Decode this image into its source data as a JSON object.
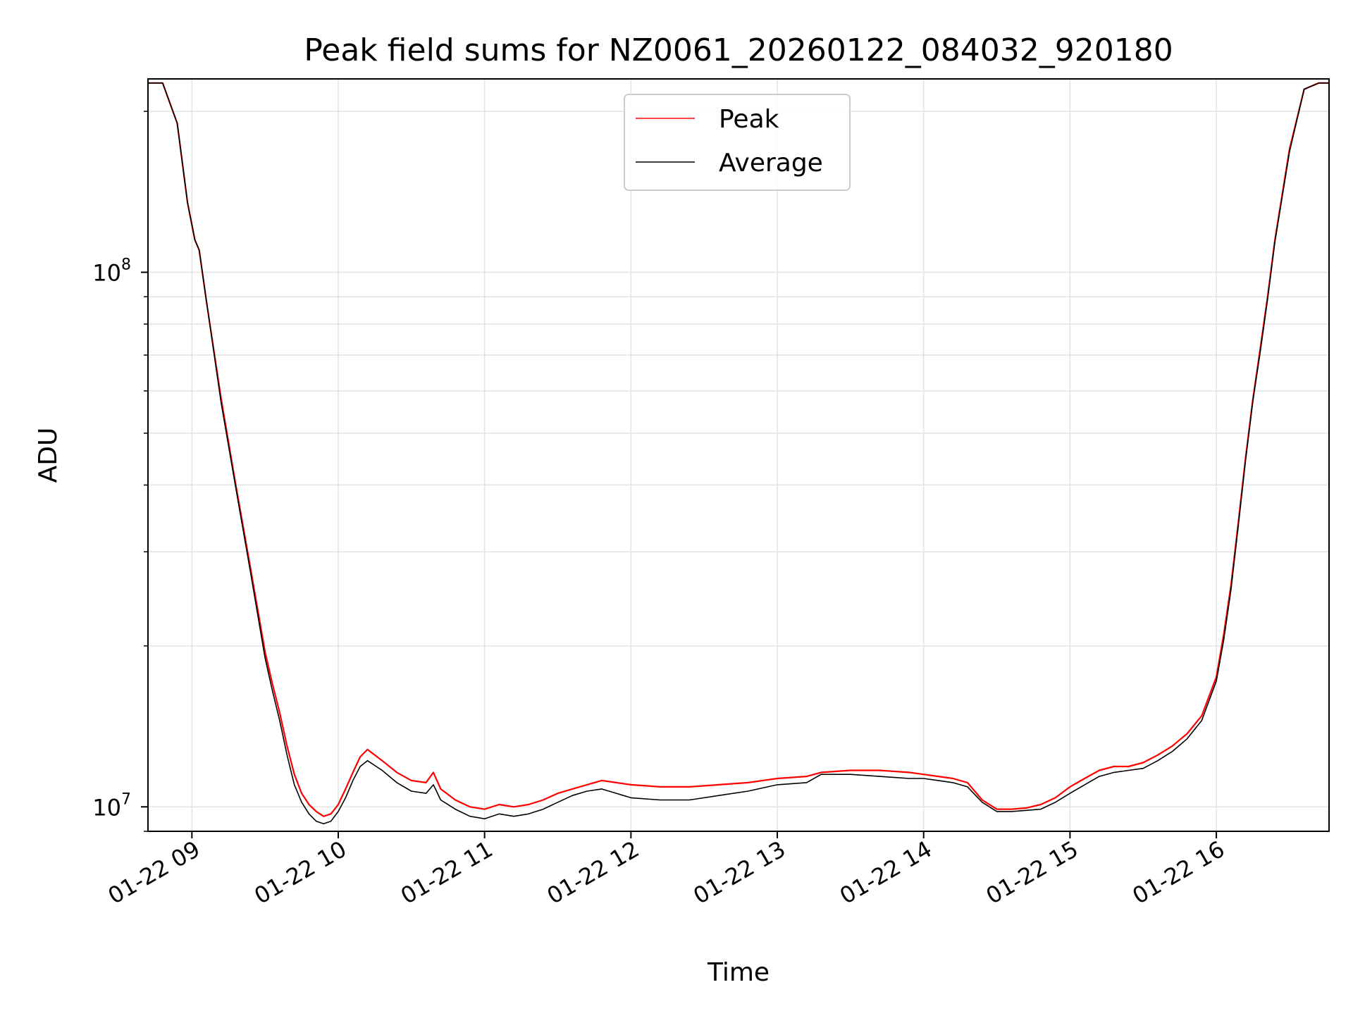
{
  "chart_data": {
    "type": "line",
    "title": "Peak field sums for NZ0061_20260122_084032_920180",
    "xlabel": "Time",
    "ylabel": "ADU",
    "yscale": "log",
    "ylim": [
      9000000,
      230000000
    ],
    "xlim_hours": [
      8.7,
      16.77
    ],
    "grid": true,
    "legend_position": "top-center",
    "x_ticks": [
      {
        "hour": 9,
        "label": "01-22 09"
      },
      {
        "hour": 10,
        "label": "01-22 10"
      },
      {
        "hour": 11,
        "label": "01-22 11"
      },
      {
        "hour": 12,
        "label": "01-22 12"
      },
      {
        "hour": 13,
        "label": "01-22 13"
      },
      {
        "hour": 14,
        "label": "01-22 14"
      },
      {
        "hour": 15,
        "label": "01-22 15"
      },
      {
        "hour": 16,
        "label": "01-22 16"
      }
    ],
    "y_ticks": [
      {
        "value": 10000000,
        "base": "10",
        "exp": "7"
      },
      {
        "value": 100000000,
        "base": "10",
        "exp": "8"
      }
    ],
    "series": [
      {
        "name": "Peak",
        "color": "#ff0000",
        "x": [
          8.7,
          8.8,
          8.9,
          8.97,
          9.02,
          9.05,
          9.1,
          9.2,
          9.3,
          9.4,
          9.5,
          9.55,
          9.6,
          9.65,
          9.7,
          9.75,
          9.8,
          9.85,
          9.9,
          9.95,
          10.0,
          10.05,
          10.1,
          10.15,
          10.2,
          10.3,
          10.4,
          10.5,
          10.6,
          10.65,
          10.7,
          10.8,
          10.9,
          11.0,
          11.1,
          11.2,
          11.3,
          11.4,
          11.5,
          11.6,
          11.7,
          11.8,
          11.9,
          12.0,
          12.2,
          12.4,
          12.6,
          12.8,
          13.0,
          13.2,
          13.3,
          13.5,
          13.7,
          13.9,
          14.0,
          14.1,
          14.2,
          14.3,
          14.4,
          14.5,
          14.6,
          14.7,
          14.8,
          14.9,
          15.0,
          15.1,
          15.2,
          15.3,
          15.4,
          15.5,
          15.6,
          15.7,
          15.8,
          15.9,
          16.0,
          16.05,
          16.1,
          16.15,
          16.2,
          16.25,
          16.3,
          16.35,
          16.4,
          16.5,
          16.6,
          16.7,
          16.77
        ],
        "values": [
          226000000,
          226000000,
          190000000,
          135000000,
          115000000,
          110000000,
          88000000,
          58000000,
          40000000,
          28000000,
          19500000,
          17000000,
          15000000,
          13000000,
          11500000,
          10600000,
          10100000,
          9800000,
          9600000,
          9700000,
          10100000,
          10800000,
          11600000,
          12400000,
          12800000,
          12200000,
          11600000,
          11200000,
          11100000,
          11600000,
          10800000,
          10300000,
          10000000,
          9900000,
          10100000,
          10000000,
          10100000,
          10300000,
          10600000,
          10800000,
          11000000,
          11200000,
          11100000,
          11000000,
          10900000,
          10900000,
          11000000,
          11100000,
          11300000,
          11400000,
          11600000,
          11700000,
          11700000,
          11600000,
          11500000,
          11400000,
          11300000,
          11100000,
          10300000,
          9900000,
          9900000,
          9950000,
          10100000,
          10400000,
          10900000,
          11300000,
          11700000,
          11900000,
          11900000,
          12100000,
          12500000,
          13000000,
          13700000,
          14800000,
          17500000,
          21000000,
          26000000,
          34000000,
          45000000,
          58000000,
          72000000,
          90000000,
          115000000,
          170000000,
          220000000,
          226000000,
          226000000
        ]
      },
      {
        "name": "Average",
        "color": "#000000",
        "x": [
          8.7,
          8.8,
          8.9,
          8.97,
          9.02,
          9.05,
          9.1,
          9.2,
          9.3,
          9.4,
          9.5,
          9.55,
          9.6,
          9.65,
          9.7,
          9.75,
          9.8,
          9.85,
          9.9,
          9.95,
          10.0,
          10.05,
          10.1,
          10.15,
          10.2,
          10.3,
          10.4,
          10.5,
          10.6,
          10.65,
          10.7,
          10.8,
          10.9,
          11.0,
          11.1,
          11.2,
          11.3,
          11.4,
          11.5,
          11.6,
          11.7,
          11.8,
          11.9,
          12.0,
          12.2,
          12.4,
          12.6,
          12.8,
          13.0,
          13.2,
          13.3,
          13.5,
          13.7,
          13.9,
          14.0,
          14.1,
          14.2,
          14.3,
          14.4,
          14.5,
          14.6,
          14.7,
          14.8,
          14.9,
          15.0,
          15.1,
          15.2,
          15.3,
          15.4,
          15.5,
          15.6,
          15.7,
          15.8,
          15.9,
          16.0,
          16.05,
          16.1,
          16.15,
          16.2,
          16.25,
          16.3,
          16.35,
          16.4,
          16.5,
          16.6,
          16.7,
          16.77
        ],
        "values": [
          226000000,
          226000000,
          190000000,
          135000000,
          115000000,
          110000000,
          88000000,
          57000000,
          39500000,
          27500000,
          19000000,
          16500000,
          14500000,
          12500000,
          11000000,
          10200000,
          9700000,
          9400000,
          9300000,
          9400000,
          9800000,
          10400000,
          11200000,
          11900000,
          12200000,
          11700000,
          11100000,
          10700000,
          10600000,
          11000000,
          10300000,
          9900000,
          9600000,
          9500000,
          9700000,
          9600000,
          9700000,
          9900000,
          10200000,
          10500000,
          10700000,
          10800000,
          10600000,
          10400000,
          10300000,
          10300000,
          10500000,
          10700000,
          11000000,
          11100000,
          11500000,
          11500000,
          11400000,
          11300000,
          11300000,
          11200000,
          11100000,
          10900000,
          10200000,
          9800000,
          9800000,
          9850000,
          9900000,
          10200000,
          10600000,
          11000000,
          11400000,
          11600000,
          11700000,
          11800000,
          12200000,
          12700000,
          13400000,
          14500000,
          17200000,
          20500000,
          25500000,
          33500000,
          44500000,
          57500000,
          71000000,
          89000000,
          114000000,
          168000000,
          220000000,
          226000000,
          226000000
        ]
      }
    ]
  }
}
